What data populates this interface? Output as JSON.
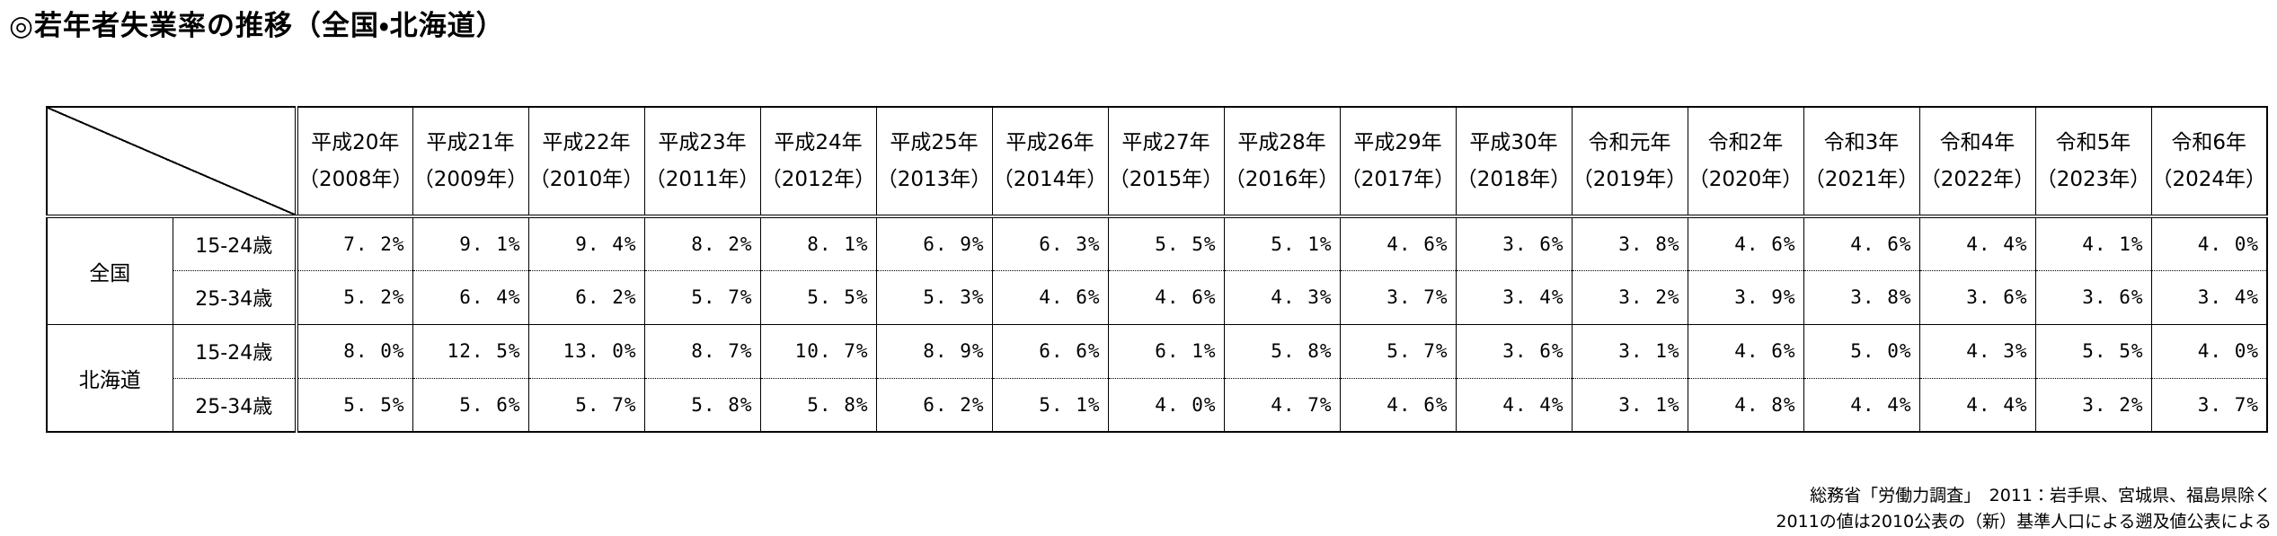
{
  "page_title": "◎若年者失業率の推移（全国・北海道）",
  "colors": {
    "text": "#000000",
    "background": "#ffffff",
    "border": "#000000"
  },
  "table": {
    "corner_label": "",
    "columns": [
      {
        "era": "平成20年",
        "western": "（2008年）"
      },
      {
        "era": "平成21年",
        "western": "（2009年）"
      },
      {
        "era": "平成22年",
        "western": "（2010年）"
      },
      {
        "era": "平成23年",
        "western": "（2011年）"
      },
      {
        "era": "平成24年",
        "western": "（2012年）"
      },
      {
        "era": "平成25年",
        "western": "（2013年）"
      },
      {
        "era": "平成26年",
        "western": "（2014年）"
      },
      {
        "era": "平成27年",
        "western": "（2015年）"
      },
      {
        "era": "平成28年",
        "western": "（2016年）"
      },
      {
        "era": "平成29年",
        "western": "（2017年）"
      },
      {
        "era": "平成30年",
        "western": "（2018年）"
      },
      {
        "era": "令和元年",
        "western": "（2019年）"
      },
      {
        "era": "令和2年",
        "western": "（2020年）"
      },
      {
        "era": "令和3年",
        "western": "（2021年）"
      },
      {
        "era": "令和4年",
        "western": "（2022年）"
      },
      {
        "era": "令和5年",
        "western": "（2023年）"
      },
      {
        "era": "令和6年",
        "western": "（2024年）"
      }
    ],
    "groups": [
      {
        "region": "全国",
        "rows": [
          {
            "age": "15-24歳",
            "series": 0
          },
          {
            "age": "25-34歳",
            "series": 1
          }
        ]
      },
      {
        "region": "北海道",
        "rows": [
          {
            "age": "15-24歳",
            "series": 2
          },
          {
            "age": "25-34歳",
            "series": 3
          }
        ]
      }
    ],
    "value_suffix": "%"
  },
  "footnote": {
    "line1": "総務省「労働力調査」　2011：岩手県、宮城県、福島県除く",
    "line2": "2011の値は2010公表の（新）基準人口による遡及値公表による"
  },
  "chart_data": {
    "type": "table",
    "title": "若年者失業率の推移（全国・北海道）",
    "unit": "%",
    "categories": [
      "平成20年（2008年）",
      "平成21年（2009年）",
      "平成22年（2010年）",
      "平成23年（2011年）",
      "平成24年（2012年）",
      "平成25年（2013年）",
      "平成26年（2014年）",
      "平成27年（2015年）",
      "平成28年（2016年）",
      "平成29年（2017年）",
      "平成30年（2018年）",
      "令和元年（2019年）",
      "令和2年（2020年）",
      "令和3年（2021年）",
      "令和4年（2022年）",
      "令和5年（2023年）",
      "令和6年（2024年）"
    ],
    "series": [
      {
        "name": "全国 15-24歳",
        "values": [
          7.2,
          9.1,
          9.4,
          8.2,
          8.1,
          6.9,
          6.3,
          5.5,
          5.1,
          4.6,
          3.6,
          3.8,
          4.6,
          4.6,
          4.4,
          4.1,
          4.0
        ]
      },
      {
        "name": "全国 25-34歳",
        "values": [
          5.2,
          6.4,
          6.2,
          5.7,
          5.5,
          5.3,
          4.6,
          4.6,
          4.3,
          3.7,
          3.4,
          3.2,
          3.9,
          3.8,
          3.6,
          3.6,
          3.4
        ]
      },
      {
        "name": "北海道 15-24歳",
        "values": [
          8.0,
          12.5,
          13.0,
          8.7,
          10.7,
          8.9,
          6.6,
          6.1,
          5.8,
          5.7,
          3.6,
          3.1,
          4.6,
          5.0,
          4.3,
          5.5,
          4.0
        ]
      },
      {
        "name": "北海道 25-34歳",
        "values": [
          5.5,
          5.6,
          5.7,
          5.8,
          5.8,
          6.2,
          5.1,
          4.0,
          4.7,
          4.6,
          4.4,
          3.1,
          4.8,
          4.4,
          4.4,
          3.2,
          3.7
        ]
      }
    ]
  }
}
